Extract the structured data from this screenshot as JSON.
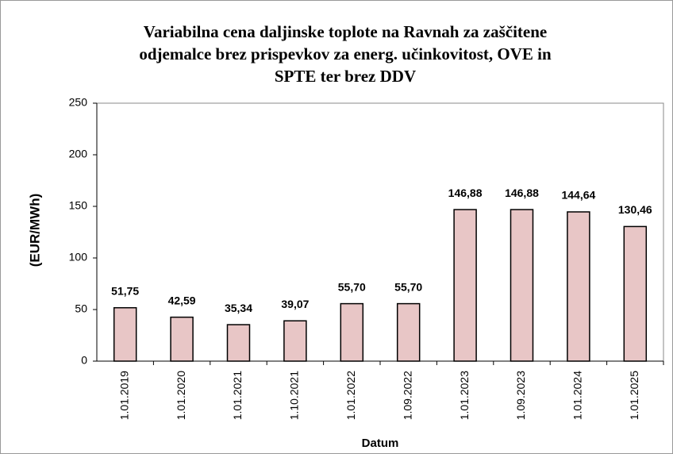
{
  "chart_data": {
    "type": "bar",
    "title": [
      "Variabilna  cena daljinske toplote na Ravnah za zaščitene",
      "odjemalce brez prispevkov za energ. učinkovitost,  OVE in",
      "SPTE ter brez DDV"
    ],
    "x_label": "Datum",
    "y_label": "(EUR/MWh)",
    "categories": [
      "1.01.2019",
      "1.01.2020",
      "1.01.2021",
      "1.10.2021",
      "1.01.2022",
      "1.09.2022",
      "1.01.2023",
      "1.09.2023",
      "1.01.2024",
      "1.01.2025"
    ],
    "values": [
      51.75,
      42.59,
      35.34,
      39.07,
      55.7,
      55.7,
      146.88,
      146.88,
      144.64,
      130.46
    ],
    "value_labels": [
      "51,75",
      "42,59",
      "35,34",
      "39,07",
      "55,70",
      "55,70",
      "146,88",
      "146,88",
      "144,64",
      "130,46"
    ],
    "color": "#e8c6c6",
    "ylim": [
      0,
      250
    ],
    "yticks": [
      0,
      50,
      100,
      150,
      200,
      250
    ],
    "grid": false
  }
}
